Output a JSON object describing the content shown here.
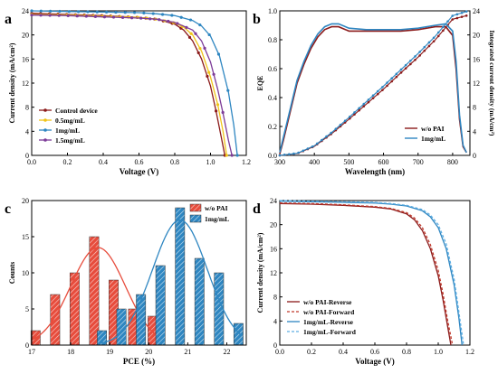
{
  "chart_data": [
    {
      "panel": "a",
      "type": "line",
      "xlabel": "Voltage (V)",
      "ylabel": "Current density (mA/cm²)",
      "xlim": [
        0.0,
        1.2
      ],
      "ylim": [
        0,
        24
      ],
      "xticks": [
        0.0,
        0.2,
        0.4,
        0.6,
        0.8,
        1.0,
        1.2
      ],
      "yticks": [
        0,
        4,
        8,
        12,
        16,
        20,
        24
      ],
      "legend_position": "bottom-left",
      "series": [
        {
          "name": "Control device",
          "color": "#8b1a1a",
          "marker": "circle",
          "x": [
            0,
            0.2,
            0.4,
            0.6,
            0.7,
            0.8,
            0.85,
            0.9,
            0.95,
            1.0,
            1.03,
            1.06,
            1.08
          ],
          "y": [
            23.6,
            23.4,
            23.2,
            22.9,
            22.6,
            21.8,
            20.8,
            19.0,
            16.0,
            11.5,
            7.5,
            3.0,
            0
          ]
        },
        {
          "name": "0.5mg/mL",
          "color": "#f0c419",
          "marker": "circle",
          "x": [
            0,
            0.2,
            0.4,
            0.6,
            0.7,
            0.8,
            0.85,
            0.9,
            0.95,
            1.0,
            1.04,
            1.07,
            1.09
          ],
          "y": [
            23.4,
            23.3,
            23.1,
            22.9,
            22.6,
            22.0,
            21.3,
            20.0,
            17.3,
            13.0,
            8.5,
            4.0,
            0
          ]
        },
        {
          "name": "1mg/mL",
          "color": "#2e86c1",
          "marker": "circle",
          "x": [
            0,
            0.2,
            0.4,
            0.6,
            0.7,
            0.8,
            0.9,
            0.95,
            1.0,
            1.05,
            1.1,
            1.13,
            1.15
          ],
          "y": [
            24.0,
            23.9,
            23.8,
            23.7,
            23.5,
            23.2,
            22.4,
            21.5,
            19.8,
            16.5,
            10.5,
            5.0,
            0
          ]
        },
        {
          "name": "1.5mg/mL",
          "color": "#7d3c98",
          "marker": "circle",
          "x": [
            0,
            0.2,
            0.4,
            0.6,
            0.7,
            0.8,
            0.9,
            0.95,
            1.0,
            1.04,
            1.07,
            1.1,
            1.12
          ],
          "y": [
            23.3,
            23.2,
            23.0,
            22.8,
            22.6,
            22.1,
            20.8,
            19.0,
            15.5,
            11.0,
            7.0,
            2.5,
            0
          ]
        }
      ]
    },
    {
      "panel": "b",
      "type": "line",
      "xlabel": "Wavelength (nm)",
      "ylabel": "EQE",
      "y2label": "Integrated current density (mA/cm²)",
      "xlim": [
        300,
        850
      ],
      "ylim": [
        0.0,
        1.0
      ],
      "y2lim": [
        0,
        24
      ],
      "xticks": [
        300,
        400,
        500,
        600,
        700,
        800
      ],
      "yticks": [
        0.0,
        0.2,
        0.4,
        0.6,
        0.8,
        1.0
      ],
      "y2ticks": [
        0,
        4,
        8,
        12,
        16,
        20,
        24
      ],
      "legend_position": "bottom-right",
      "series": [
        {
          "name": "w/o PAI",
          "color": "#8b1a1a",
          "x": [
            300,
            310,
            330,
            350,
            370,
            390,
            410,
            430,
            450,
            470,
            500,
            550,
            600,
            650,
            700,
            750,
            780,
            800,
            810,
            820,
            830,
            840
          ],
          "eqe": [
            0.01,
            0.1,
            0.3,
            0.5,
            0.63,
            0.74,
            0.82,
            0.87,
            0.89,
            0.89,
            0.86,
            0.86,
            0.86,
            0.86,
            0.87,
            0.89,
            0.89,
            0.83,
            0.6,
            0.25,
            0.06,
            0.02
          ],
          "jsc_x": [
            300,
            350,
            400,
            450,
            500,
            550,
            600,
            650,
            700,
            750,
            800,
            840
          ],
          "jsc_y": [
            0,
            0.3,
            1.5,
            3.6,
            6.0,
            8.5,
            11.0,
            13.7,
            16.3,
            19.2,
            22.6,
            23.2
          ]
        },
        {
          "name": "1mg/mL",
          "color": "#2e86c1",
          "x": [
            300,
            310,
            330,
            350,
            370,
            390,
            410,
            430,
            450,
            470,
            500,
            550,
            600,
            650,
            700,
            750,
            780,
            800,
            810,
            820,
            830,
            840
          ],
          "eqe": [
            0.02,
            0.12,
            0.32,
            0.52,
            0.65,
            0.76,
            0.84,
            0.89,
            0.91,
            0.91,
            0.88,
            0.87,
            0.87,
            0.87,
            0.88,
            0.9,
            0.91,
            0.86,
            0.65,
            0.28,
            0.07,
            0.02
          ],
          "jsc_x": [
            300,
            350,
            400,
            450,
            500,
            550,
            600,
            650,
            700,
            750,
            800,
            840
          ],
          "jsc_y": [
            0,
            0.35,
            1.6,
            3.8,
            6.3,
            8.9,
            11.5,
            14.2,
            16.9,
            19.8,
            23.2,
            23.9
          ]
        }
      ]
    },
    {
      "panel": "c",
      "type": "bar",
      "xlabel": "PCE (%)",
      "ylabel": "Counts",
      "xlim": [
        17,
        22.5
      ],
      "ylim": [
        0,
        20
      ],
      "xticks": [
        17,
        18,
        19,
        20,
        21,
        22
      ],
      "yticks": [
        0,
        5,
        10,
        15,
        20
      ],
      "legend_position": "top-right",
      "series": [
        {
          "name": "w/o PAI",
          "color": "#e74c3c",
          "x": [
            17.1,
            17.6,
            18.1,
            18.6,
            19.1,
            19.6,
            20.1
          ],
          "values": [
            2,
            7,
            10,
            15,
            9,
            5,
            4
          ],
          "fit": {
            "center": 18.7,
            "sigma": 0.7,
            "amplitude": 13.5
          }
        },
        {
          "name": "1mg/mL",
          "color": "#2e86c1",
          "x": [
            18.8,
            19.3,
            19.8,
            20.3,
            20.8,
            21.3,
            21.8,
            22.3
          ],
          "values": [
            2,
            5,
            7,
            11,
            19,
            12,
            10,
            3
          ],
          "fit": {
            "center": 20.8,
            "sigma": 0.7,
            "amplitude": 17.3
          }
        }
      ]
    },
    {
      "panel": "d",
      "type": "line",
      "xlabel": "Voltage (V)",
      "ylabel": "Current density (mA/cm²)",
      "xlim": [
        0.0,
        1.2
      ],
      "ylim": [
        0,
        24
      ],
      "xticks": [
        0.0,
        0.2,
        0.4,
        0.6,
        0.8,
        1.0,
        1.2
      ],
      "yticks": [
        0,
        4,
        8,
        12,
        16,
        20,
        24
      ],
      "legend_position": "bottom-left",
      "series": [
        {
          "name": "w/o PAI-Reverse",
          "color": "#8b1a1a",
          "dash": false,
          "x": [
            0,
            0.2,
            0.4,
            0.6,
            0.7,
            0.8,
            0.85,
            0.9,
            0.95,
            1.0,
            1.03,
            1.06,
            1.08
          ],
          "y": [
            23.5,
            23.4,
            23.2,
            22.9,
            22.6,
            21.8,
            20.8,
            19.0,
            16.0,
            11.5,
            7.5,
            3.0,
            0
          ]
        },
        {
          "name": "w/o PAI-Forward",
          "color": "#c0392b",
          "dash": true,
          "x": [
            0,
            0.2,
            0.4,
            0.6,
            0.7,
            0.8,
            0.85,
            0.9,
            0.95,
            1.0,
            1.03,
            1.06,
            1.09
          ],
          "y": [
            23.6,
            23.5,
            23.3,
            23.0,
            22.7,
            22.0,
            21.1,
            19.5,
            16.7,
            12.4,
            8.5,
            4.0,
            0
          ]
        },
        {
          "name": "1mg/mL-Reverse",
          "color": "#2e86c1",
          "dash": false,
          "x": [
            0,
            0.2,
            0.4,
            0.6,
            0.7,
            0.8,
            0.9,
            0.95,
            1.0,
            1.05,
            1.1,
            1.13,
            1.15
          ],
          "y": [
            23.9,
            23.8,
            23.7,
            23.6,
            23.4,
            23.1,
            22.3,
            21.3,
            19.5,
            16.0,
            10.0,
            4.5,
            0
          ]
        },
        {
          "name": "1mg/mL-Forward",
          "color": "#5dade2",
          "dash": true,
          "x": [
            0,
            0.2,
            0.4,
            0.6,
            0.7,
            0.8,
            0.9,
            0.95,
            1.0,
            1.05,
            1.1,
            1.13,
            1.16
          ],
          "y": [
            24.0,
            23.9,
            23.8,
            23.7,
            23.5,
            23.2,
            22.5,
            21.6,
            20.0,
            16.8,
            11.0,
            5.5,
            0
          ]
        }
      ]
    }
  ]
}
